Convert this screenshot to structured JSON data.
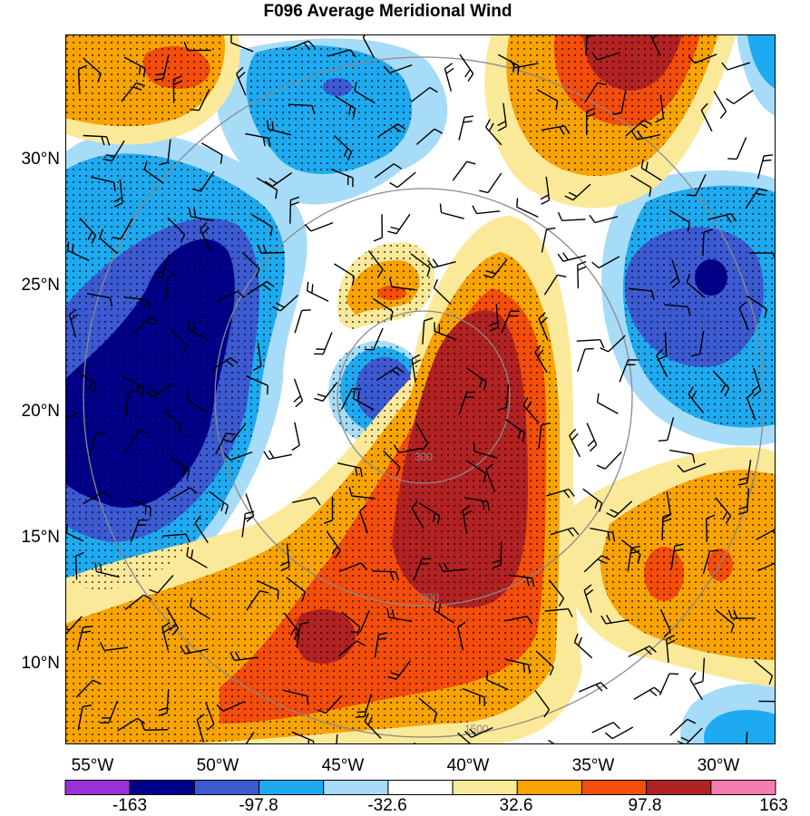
{
  "title": "F096 Average Meridional Wind",
  "lat_labels": [
    "30°N",
    "25°N",
    "20°N",
    "15°N",
    "10°N"
  ],
  "lon_labels": [
    "55°W",
    "50°W",
    "45°W",
    "40°W",
    "35°W",
    "30°W"
  ],
  "colorbar": {
    "colors": [
      "#9b30d8",
      "#00008b",
      "#3c5ad2",
      "#1eaaf0",
      "#a6dcf8",
      "#ffffff",
      "#fbe99a",
      "#f8a300",
      "#f54d0a",
      "#b22222",
      "#f47cae"
    ],
    "labels": [
      "-163",
      "-97.8",
      "-32.6",
      "32.6",
      "97.8",
      "163"
    ]
  },
  "range_ring_labels": [
    "300",
    "900",
    "1500"
  ],
  "colors": {
    "blue_dark": "#00008b",
    "blue_mid": "#3c5ad2",
    "blue_light": "#1eaaf0",
    "blue_pale": "#a6dcf8",
    "yellow": "#fbe99a",
    "orange": "#f8a300",
    "red_orange": "#f54d0a",
    "dark_red": "#b22222",
    "ring": "#8a8a8a"
  }
}
